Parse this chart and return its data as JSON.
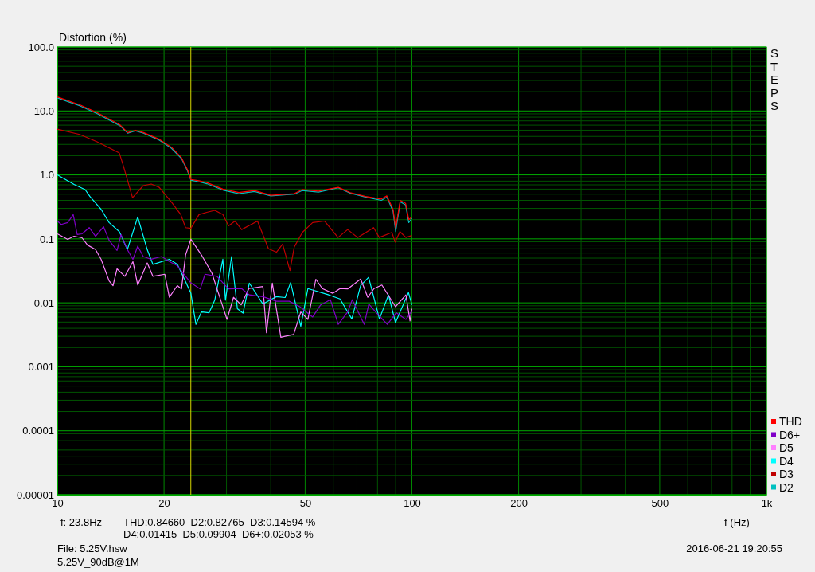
{
  "chart_data": {
    "type": "line",
    "ylabel": "Distortion (%)",
    "xlabel": "f (Hz)",
    "log": "xy",
    "grid": true,
    "legend": "bottom right",
    "marker": "none",
    "line_style": "solid",
    "xlim": [
      10,
      1000
    ],
    "ylim": [
      1e-05,
      100
    ],
    "xticks": [
      10,
      20,
      {
        "value": 30,
        "label": null
      },
      {
        "value": 40,
        "label": null
      },
      50,
      {
        "value": 60,
        "label": null
      },
      {
        "value": 70,
        "label": null
      },
      {
        "value": 80,
        "label": null
      },
      {
        "value": 90,
        "label": null
      },
      100,
      200,
      {
        "value": 300,
        "label": null
      },
      {
        "value": 400,
        "label": null
      },
      500,
      {
        "value": 600,
        "label": null
      },
      {
        "value": 700,
        "label": null
      },
      {
        "value": 800,
        "label": null
      },
      {
        "value": 900,
        "label": null
      },
      {
        "value": 1000,
        "label": "1k"
      }
    ],
    "yticks": [
      {
        "value": 1e-05,
        "label": "0.00001"
      },
      {
        "value": 2e-05,
        "label": null
      },
      {
        "value": 3e-05,
        "label": null
      },
      {
        "value": 4e-05,
        "label": null
      },
      {
        "value": 5e-05,
        "label": null
      },
      {
        "value": 6e-05,
        "label": null
      },
      {
        "value": 7e-05,
        "label": null
      },
      {
        "value": 8e-05,
        "label": null
      },
      {
        "value": 9e-05,
        "label": null
      },
      {
        "value": 0.0001,
        "label": "0.0001"
      },
      {
        "value": 0.0002,
        "label": null
      },
      {
        "value": 0.0003,
        "label": null
      },
      {
        "value": 0.0004,
        "label": null
      },
      {
        "value": 0.0005,
        "label": null
      },
      {
        "value": 0.0006,
        "label": null
      },
      {
        "value": 0.0007,
        "label": null
      },
      {
        "value": 0.0008,
        "label": null
      },
      {
        "value": 0.0009,
        "label": null
      },
      {
        "value": 0.001,
        "label": "0.001"
      },
      {
        "value": 0.002,
        "label": null
      },
      {
        "value": 0.003,
        "label": null
      },
      {
        "value": 0.004,
        "label": null
      },
      {
        "value": 0.005,
        "label": null
      },
      {
        "value": 0.006,
        "label": null
      },
      {
        "value": 0.007,
        "label": null
      },
      {
        "value": 0.008,
        "label": null
      },
      {
        "value": 0.009,
        "label": null
      },
      {
        "value": 0.01,
        "label": "0.01"
      },
      {
        "value": 0.02,
        "label": null
      },
      {
        "value": 0.03,
        "label": null
      },
      {
        "value": 0.04,
        "label": null
      },
      {
        "value": 0.05,
        "label": null
      },
      {
        "value": 0.06,
        "label": null
      },
      {
        "value": 0.07,
        "label": null
      },
      {
        "value": 0.08,
        "label": null
      },
      {
        "value": 0.09,
        "label": null
      },
      {
        "value": 0.1,
        "label": "0.1"
      },
      {
        "value": 0.2,
        "label": null
      },
      {
        "value": 0.3,
        "label": null
      },
      {
        "value": 0.4,
        "label": null
      },
      {
        "value": 0.5,
        "label": null
      },
      {
        "value": 0.6,
        "label": null
      },
      {
        "value": 0.7,
        "label": null
      },
      {
        "value": 0.8,
        "label": null
      },
      {
        "value": 0.9,
        "label": null
      },
      {
        "value": 1,
        "label": "1.0"
      },
      {
        "value": 2,
        "label": null
      },
      {
        "value": 3,
        "label": null
      },
      {
        "value": 4,
        "label": null
      },
      {
        "value": 5,
        "label": null
      },
      {
        "value": 6,
        "label": null
      },
      {
        "value": 7,
        "label": null
      },
      {
        "value": 8,
        "label": null
      },
      {
        "value": 9,
        "label": null
      },
      {
        "value": 10,
        "label": "10.0"
      },
      {
        "value": 20,
        "label": null
      },
      {
        "value": 30,
        "label": null
      },
      {
        "value": 40,
        "label": null
      },
      {
        "value": 50,
        "label": null
      },
      {
        "value": 60,
        "label": null
      },
      {
        "value": 70,
        "label": null
      },
      {
        "value": 80,
        "label": null
      },
      {
        "value": 90,
        "label": null
      },
      {
        "value": 100,
        "label": "100.0"
      }
    ],
    "ref_lines": [
      {
        "axis": "x",
        "value": 23.8,
        "color": "#d8d800"
      }
    ],
    "annotations": [
      "f: 23.8Hz",
      "THD:0.84660  D2:0.82765  D3:0.14594 %",
      "D4:0.01415  D5:0.09904  D6+:0.02053 %",
      "File: 5.25V.hsw",
      "5.25V_90dB@1M",
      "2016-06-21 19:20:55",
      "STEPS"
    ],
    "series": [
      {
        "name": "THD",
        "color": "#ff0000",
        "x": [
          10,
          11.6,
          13,
          15,
          15.8,
          16.6,
          17.5,
          19.4,
          21,
          22.4,
          23.3,
          23.8,
          25.1,
          26.4,
          29.3,
          32.5,
          36,
          40,
          46.6,
          49,
          54.5,
          62,
          67,
          74,
          82,
          85,
          88.5,
          90,
          92.7,
          96,
          98,
          100
        ],
        "values": [
          16.6,
          12.4,
          9.3,
          6.1,
          4.6,
          5.0,
          4.6,
          3.6,
          2.7,
          1.86,
          1.2,
          0.85,
          0.81,
          0.76,
          0.6,
          0.53,
          0.57,
          0.48,
          0.51,
          0.59,
          0.56,
          0.64,
          0.53,
          0.46,
          0.42,
          0.47,
          0.29,
          0.147,
          0.4,
          0.36,
          0.2,
          0.22
        ]
      },
      {
        "name": "D6+",
        "color": "#8000c8",
        "x": [
          10,
          10.26,
          10.7,
          11.09,
          11.38,
          11.74,
          12.3,
          12.82,
          13.5,
          14,
          14.74,
          15.13,
          15.76,
          16.34,
          16.86,
          17.47,
          18.4,
          19.7,
          20.6,
          21.8,
          23.8,
          25.3,
          26.1,
          28.2,
          30.4,
          33.1,
          34.8,
          38,
          41.5,
          45.1,
          48.3,
          52.5,
          55.3,
          58.9,
          62,
          65.9,
          67.9,
          73.4,
          75.6,
          79.4,
          85.3,
          90.3,
          96.2,
          100
        ],
        "values": [
          0.19,
          0.168,
          0.18,
          0.24,
          0.117,
          0.12,
          0.15,
          0.11,
          0.155,
          0.095,
          0.066,
          0.117,
          0.068,
          0.048,
          0.077,
          0.053,
          0.048,
          0.053,
          0.045,
          0.038,
          0.0205,
          0.0165,
          0.028,
          0.026,
          0.0165,
          0.0167,
          0.0133,
          0.0125,
          0.0106,
          0.0106,
          0.0087,
          0.006,
          0.0093,
          0.0112,
          0.0046,
          0.0072,
          0.0112,
          0.0046,
          0.0096,
          0.007,
          0.0046,
          0.007,
          0.0055,
          0.0075
        ]
      },
      {
        "name": "D5",
        "color": "#ff80ff",
        "x": [
          10,
          10.7,
          11.15,
          11.74,
          12.17,
          12.82,
          13.29,
          14,
          14.36,
          14.74,
          15.51,
          16.34,
          16.86,
          17.93,
          18.6,
          20.1,
          20.7,
          21.8,
          22.4,
          23,
          23.8,
          25.5,
          27.3,
          28.9,
          30.1,
          31.4,
          33,
          34.7,
          38,
          38.9,
          40.4,
          42.7,
          43.9,
          46.4,
          48.6,
          50.9,
          53.6,
          55.9,
          59.8,
          62.7,
          65.9,
          71.7,
          75.1,
          78.2,
          82.3,
          89.9,
          96.2,
          98.8,
          100
        ],
        "values": [
          0.12,
          0.098,
          0.11,
          0.104,
          0.08,
          0.068,
          0.048,
          0.022,
          0.0186,
          0.034,
          0.026,
          0.044,
          0.019,
          0.042,
          0.026,
          0.028,
          0.0122,
          0.0186,
          0.0165,
          0.056,
          0.099,
          0.056,
          0.029,
          0.011,
          0.0055,
          0.0122,
          0.0093,
          0.0167,
          0.018,
          0.0034,
          0.0203,
          0.0029,
          0.003,
          0.0032,
          0.0072,
          0.0055,
          0.0234,
          0.0167,
          0.0141,
          0.0167,
          0.0165,
          0.0236,
          0.0122,
          0.0167,
          0.019,
          0.0087,
          0.0133,
          0.0052,
          0.0081
        ]
      },
      {
        "name": "D4",
        "color": "#00ffff",
        "x": [
          10,
          11.15,
          11.98,
          12.36,
          13.29,
          14,
          14.96,
          15.76,
          16.86,
          17.93,
          18.6,
          20.7,
          21.8,
          23,
          23.8,
          24.6,
          25.5,
          26.8,
          27.8,
          29.3,
          29.8,
          31,
          32.2,
          33.4,
          34.8,
          38,
          41.5,
          43.9,
          45.5,
          48.6,
          50.9,
          58.3,
          62.7,
          67.7,
          71.7,
          75.5,
          81,
          85.9,
          89.9,
          97.8,
          100
        ],
        "values": [
          1.0,
          0.71,
          0.59,
          0.46,
          0.29,
          0.18,
          0.13,
          0.068,
          0.22,
          0.068,
          0.04,
          0.048,
          0.04,
          0.0215,
          0.0142,
          0.0046,
          0.0072,
          0.007,
          0.011,
          0.048,
          0.011,
          0.053,
          0.0081,
          0.0069,
          0.0203,
          0.0096,
          0.0125,
          0.0121,
          0.0208,
          0.0043,
          0.0167,
          0.0133,
          0.0115,
          0.0056,
          0.0187,
          0.025,
          0.0056,
          0.0133,
          0.0049,
          0.0145,
          0.0093
        ]
      },
      {
        "name": "D3",
        "color": "#c00000",
        "x": [
          10,
          11.56,
          12.95,
          14.96,
          15.35,
          16.3,
          17.47,
          18.4,
          19.38,
          20.96,
          22.3,
          23,
          23.8,
          25.1,
          26.4,
          27.8,
          29.3,
          30.4,
          31.7,
          33.1,
          36.7,
          39.4,
          41.5,
          43.2,
          45.3,
          46.6,
          49.1,
          52.5,
          56.7,
          61.9,
          65.9,
          70.3,
          78,
          80.9,
          87.8,
          89.7,
          92.5,
          96.2,
          100
        ],
        "values": [
          5.2,
          4.3,
          3.3,
          2.2,
          1.4,
          0.44,
          0.68,
          0.72,
          0.64,
          0.38,
          0.24,
          0.15,
          0.146,
          0.24,
          0.26,
          0.28,
          0.24,
          0.16,
          0.19,
          0.14,
          0.19,
          0.07,
          0.062,
          0.083,
          0.032,
          0.075,
          0.126,
          0.18,
          0.19,
          0.105,
          0.14,
          0.105,
          0.15,
          0.105,
          0.126,
          0.089,
          0.13,
          0.105,
          0.113
        ]
      },
      {
        "name": "D2",
        "color": "#00c0c0",
        "x": [
          10,
          11.6,
          13,
          15,
          15.8,
          16.6,
          17.5,
          19.4,
          21,
          22.4,
          23.3,
          23.8,
          25.1,
          26.4,
          29.3,
          32.5,
          36,
          40,
          46.6,
          49,
          54.5,
          62,
          67,
          74,
          82,
          85,
          88.5,
          90,
          92.7,
          96,
          98,
          100
        ],
        "values": [
          16,
          12,
          9,
          5.9,
          4.5,
          4.9,
          4.5,
          3.5,
          2.6,
          1.8,
          1.15,
          0.83,
          0.78,
          0.73,
          0.58,
          0.51,
          0.55,
          0.47,
          0.5,
          0.57,
          0.54,
          0.63,
          0.52,
          0.45,
          0.4,
          0.45,
          0.27,
          0.13,
          0.38,
          0.34,
          0.18,
          0.21
        ]
      }
    ]
  }
}
